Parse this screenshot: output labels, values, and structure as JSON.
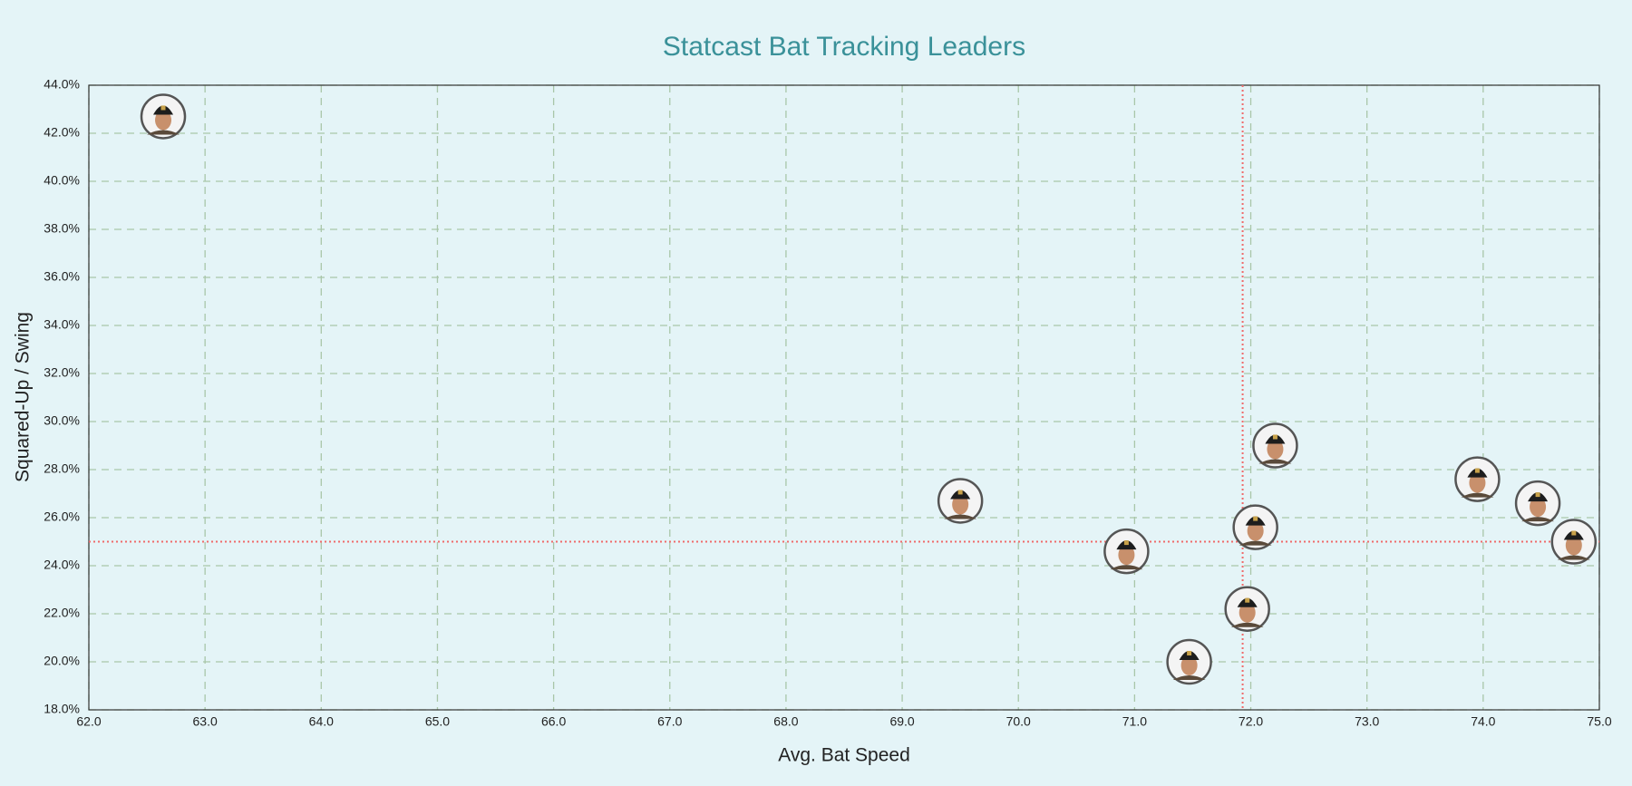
{
  "chart_data": {
    "type": "scatter",
    "title": "Statcast Bat Tracking Leaders",
    "x_label": "Avg. Bat Speed",
    "y_label": "Squared-Up / Swing",
    "x": [
      62.64,
      69.5,
      70.93,
      71.47,
      71.97,
      72.04,
      72.21,
      73.95,
      74.47,
      74.78
    ],
    "y": [
      42.7,
      26.7,
      24.6,
      20.0,
      22.2,
      25.6,
      29.0,
      27.6,
      26.6,
      25.0
    ],
    "xlim": [
      62,
      75
    ],
    "ylim": [
      18,
      44
    ],
    "xticks": [
      {
        "value": 62,
        "label": "62.0"
      },
      {
        "value": 63,
        "label": "63.0"
      },
      {
        "value": 64,
        "label": "64.0"
      },
      {
        "value": 65,
        "label": "65.0"
      },
      {
        "value": 66,
        "label": "66.0"
      },
      {
        "value": 67,
        "label": "67.0"
      },
      {
        "value": 68,
        "label": "68.0"
      },
      {
        "value": 69,
        "label": "69.0"
      },
      {
        "value": 70,
        "label": "70.0"
      },
      {
        "value": 71,
        "label": "71.0"
      },
      {
        "value": 72,
        "label": "72.0"
      },
      {
        "value": 73,
        "label": "73.0"
      },
      {
        "value": 74,
        "label": "74.0"
      },
      {
        "value": 75,
        "label": "75.0"
      }
    ],
    "yticks": [
      {
        "value": 18,
        "label": "18.0%"
      },
      {
        "value": 20,
        "label": "20.0%"
      },
      {
        "value": 22,
        "label": "22.0%"
      },
      {
        "value": 24,
        "label": "24.0%"
      },
      {
        "value": 26,
        "label": "26.0%"
      },
      {
        "value": 28,
        "label": "28.0%"
      },
      {
        "value": 30,
        "label": "30.0%"
      },
      {
        "value": 32,
        "label": "32.0%"
      },
      {
        "value": 34,
        "label": "34.0%"
      },
      {
        "value": 36,
        "label": "36.0%"
      },
      {
        "value": 38,
        "label": "38.0%"
      },
      {
        "value": 40,
        "label": "40.0%"
      },
      {
        "value": 42,
        "label": "42.0%"
      },
      {
        "value": 44,
        "label": "44.0%"
      }
    ],
    "reference_x": 71.93,
    "reference_y": 25.0,
    "reference_color": "#f06a6a",
    "grid": true,
    "grid_color": "#a9c6a9"
  }
}
